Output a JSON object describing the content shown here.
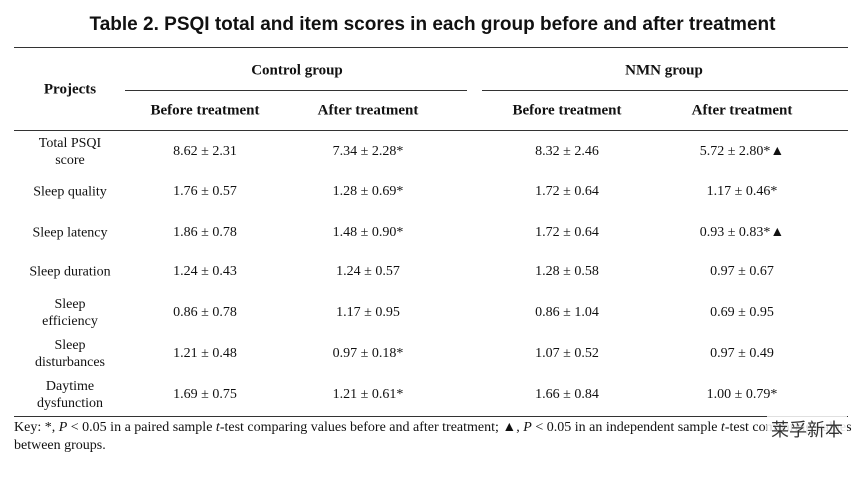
{
  "title": "Table 2. PSQI total and item scores in each group before and after treatment",
  "table": {
    "row_header": "Projects",
    "groups": [
      "Control group",
      "NMN group"
    ],
    "subheaders": [
      "Before treatment",
      "After treatment",
      "Before treatment",
      "After treatment"
    ],
    "rows": [
      [
        "Total PSQI score",
        "8.62 ± 2.31",
        "7.34 ± 2.28*",
        "8.32 ± 2.46",
        "5.72 ± 2.80*▲"
      ],
      [
        "Sleep quality",
        "1.76 ± 0.57",
        "1.28 ± 0.69*",
        "1.72 ± 0.64",
        "1.17 ± 0.46*"
      ],
      [
        "Sleep latency",
        "1.86 ± 0.78",
        "1.48 ± 0.90*",
        "1.72 ± 0.64",
        "0.93 ± 0.83*▲"
      ],
      [
        "Sleep duration",
        "1.24 ± 0.43",
        "1.24 ± 0.57",
        "1.28 ± 0.58",
        "0.97 ± 0.67"
      ],
      [
        "Sleep efficiency",
        "0.86 ± 0.78",
        "1.17 ± 0.95",
        "0.86 ± 1.04",
        "0.69 ± 0.95"
      ],
      [
        "Sleep disturbances",
        "1.21 ± 0.48",
        "0.97 ± 0.18*",
        "1.07 ± 0.52",
        "0.97 ± 0.49"
      ],
      [
        "Daytime dysfunction",
        "1.69 ± 0.75",
        "1.21 ± 0.61*",
        "1.66 ± 0.84",
        "1.00 ± 0.79*"
      ]
    ]
  },
  "key": [
    "Key: *, ",
    "P",
    " < 0.05 in a paired sample ",
    "t",
    "-test comparing values before and after treatment; ▲, ",
    "P",
    " < 0.05 in an independent sample ",
    "t",
    "-test comparing values between groups."
  ],
  "watermark": "莱孚新本"
}
